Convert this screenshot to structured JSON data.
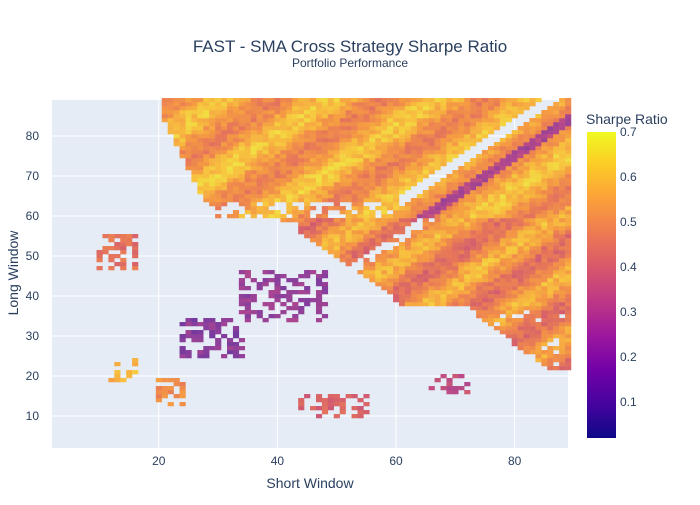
{
  "title": "FAST - SMA Cross Strategy Sharpe Ratio",
  "subtitle": "Portfolio Performance",
  "chart_data": {
    "type": "heatmap",
    "title": "FAST - SMA Cross Strategy Sharpe Ratio",
    "subtitle": "Portfolio Performance",
    "xlabel": "Short Window",
    "ylabel": "Long Window",
    "xlim": [
      2,
      89
    ],
    "ylim": [
      2,
      89
    ],
    "x_ticks": [
      20,
      40,
      60,
      80
    ],
    "y_ticks": [
      10,
      20,
      30,
      40,
      50,
      60,
      70,
      80
    ],
    "grid": true,
    "colorbar": {
      "title": "Sharpe Ratio",
      "min": 0.02,
      "max": 0.7,
      "ticks": [
        0.1,
        0.2,
        0.3,
        0.4,
        0.5,
        0.6,
        0.7
      ],
      "colorscale": [
        "#0d0887",
        "#46039f",
        "#7201a8",
        "#9c179e",
        "#bd3786",
        "#d8576b",
        "#ed7953",
        "#fb9f3a",
        "#fdca26",
        "#f0f921"
      ],
      "plot_colorscale": [
        "#0c2a3f",
        "#25298c",
        "#5b35a0",
        "#8a3f9c",
        "#b4478c",
        "#d35d6e",
        "#e97a56",
        "#f59a43",
        "#f7c43e",
        "#eef046"
      ]
    },
    "regions": [
      {
        "desc": "top-right high band",
        "x": [
          21,
          89
        ],
        "y": [
          60,
          89
        ],
        "value": 0.56
      },
      {
        "desc": "middle band",
        "x": [
          38,
          89
        ],
        "y": [
          38,
          62
        ],
        "value": 0.52
      },
      {
        "desc": "lower-right band",
        "x": [
          58,
          89
        ],
        "y": [
          22,
          40
        ],
        "value": 0.5
      },
      {
        "desc": "purple cluster",
        "x": [
          34,
          48
        ],
        "y": [
          34,
          46
        ],
        "value": 0.27
      },
      {
        "desc": "blue streak",
        "x": [
          24,
          34
        ],
        "y": [
          25,
          34
        ],
        "value": 0.25
      },
      {
        "desc": "yellow island",
        "x": [
          12,
          16
        ],
        "y": [
          19,
          24
        ],
        "value": 0.6
      },
      {
        "desc": "orange island",
        "x": [
          20,
          24
        ],
        "y": [
          13,
          19
        ],
        "value": 0.52
      },
      {
        "desc": "left cluster",
        "x": [
          10,
          16
        ],
        "y": [
          47,
          55
        ],
        "value": 0.45
      },
      {
        "desc": "lower-middle line",
        "x": [
          44,
          55
        ],
        "y": [
          10,
          15
        ],
        "value": 0.42
      },
      {
        "desc": "lower-right patch",
        "x": [
          66,
          72
        ],
        "y": [
          16,
          20
        ],
        "value": 0.35
      }
    ]
  }
}
